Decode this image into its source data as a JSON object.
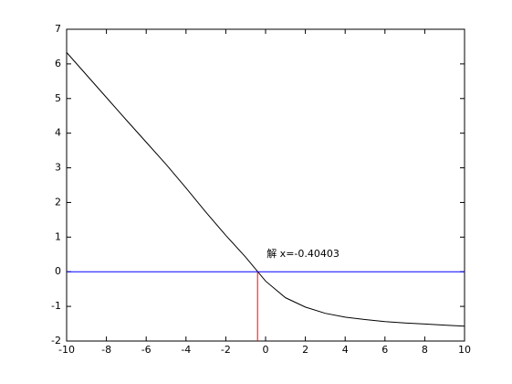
{
  "chart_data": {
    "type": "line",
    "annotation": "解 x=-0.40403",
    "series": [
      {
        "color": "#000000",
        "x": [
          -10,
          -9,
          -8,
          -7,
          -6,
          -5,
          -4,
          -3,
          -2,
          -1,
          0,
          1,
          2,
          3,
          4,
          5,
          6,
          7,
          8,
          9,
          10
        ],
        "values": [
          6.33,
          5.68,
          5.03,
          4.38,
          3.74,
          3.1,
          2.42,
          1.72,
          1.05,
          0.42,
          -0.27,
          -0.75,
          -1.02,
          -1.2,
          -1.31,
          -1.38,
          -1.44,
          -1.48,
          -1.51,
          -1.54,
          -1.57
        ]
      },
      {
        "color": "#0000ff",
        "x": [
          -10,
          10
        ],
        "values": [
          0,
          0
        ]
      },
      {
        "color": "#ff0000",
        "x": [
          -0.40403,
          -0.40403
        ],
        "values": [
          -2,
          0
        ]
      }
    ],
    "xlim": [
      -10,
      10
    ],
    "xticks": [
      -10,
      -8,
      -6,
      -4,
      -2,
      0,
      2,
      4,
      6,
      8,
      10
    ],
    "ylim": [
      -2,
      7
    ],
    "yticks": [
      -2,
      -1,
      0,
      1,
      2,
      3,
      4,
      5,
      6,
      7
    ]
  }
}
